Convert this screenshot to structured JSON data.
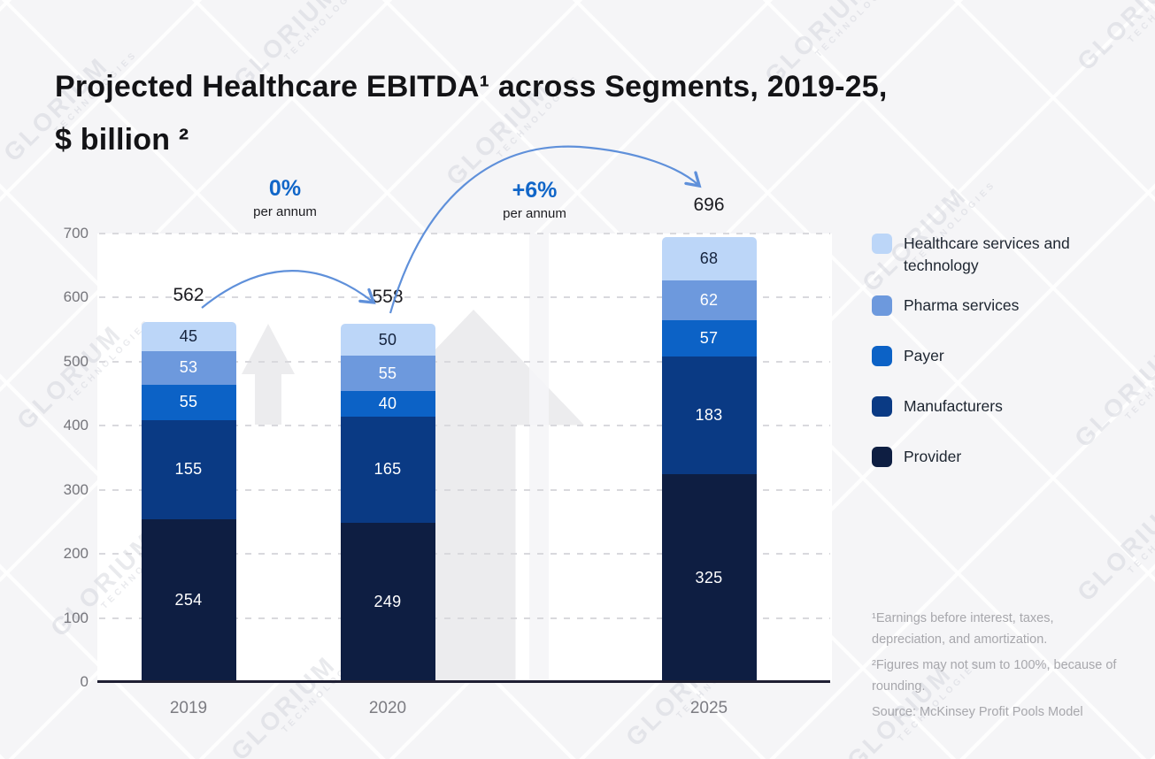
{
  "title": {
    "line1": "Projected Healthcare EBITDA¹ across Segments, 2019-25,",
    "line2": "$ billion ²"
  },
  "watermark": {
    "line1": "GLORIUM",
    "line2": "TECHNOLOGIES"
  },
  "chart_data": {
    "type": "bar",
    "stacked": true,
    "title": "Projected Healthcare EBITDA¹ across Segments, 2019-25, $ billion ²",
    "categories": [
      "2019",
      "2020",
      "2025"
    ],
    "series": [
      {
        "name": "Provider",
        "color": "#0e1e42",
        "label_color": "#ffffff",
        "values": [
          254,
          249,
          325
        ]
      },
      {
        "name": "Manufacturers",
        "color": "#0a3a84",
        "label_color": "#ffffff",
        "values": [
          155,
          165,
          183
        ]
      },
      {
        "name": "Payer",
        "color": "#0c62c6",
        "label_color": "#ffffff",
        "values": [
          55,
          40,
          57
        ]
      },
      {
        "name": "Pharma services",
        "color": "#6d99dd",
        "label_color": "#ffffff",
        "values": [
          53,
          55,
          62
        ]
      },
      {
        "name": "Healthcare services and technology",
        "color": "#bcd6f8",
        "label_color": "#15233d",
        "values": [
          45,
          50,
          68
        ]
      }
    ],
    "totals": [
      562,
      558,
      696
    ],
    "yticks": [
      0,
      100,
      200,
      300,
      400,
      500,
      600,
      700
    ],
    "ylim": [
      0,
      700
    ],
    "grid": "horizontal-dashed",
    "legend_position": "right",
    "legend_order": [
      "Healthcare services and technology",
      "Pharma services",
      "Payer",
      "Manufacturers",
      "Provider"
    ],
    "annotations": [
      {
        "label": "0%",
        "sublabel": "per annum",
        "from": "2019",
        "to": "2020"
      },
      {
        "label": "+6%",
        "sublabel": "per annum",
        "from": "2020",
        "to": "2025"
      }
    ]
  },
  "footnotes": [
    "¹Earnings before interest, taxes, depreciation, and amortization.",
    "²Figures may not sum to 100%, because of rounding.",
    "Source: McKinsey Profit Pools Model"
  ],
  "colors": {
    "background": "#f5f5f7",
    "panel": "#ffffff",
    "accent_blue": "#1166c8",
    "arrow_blue": "#5f90da",
    "grid": "#d9d9dd",
    "axis": "#1f1f33",
    "text_dark": "#1b1b20",
    "text_gray": "#7c7c82",
    "footnote_gray": "#a7a7ac",
    "deco_arrow": "#ececee"
  }
}
